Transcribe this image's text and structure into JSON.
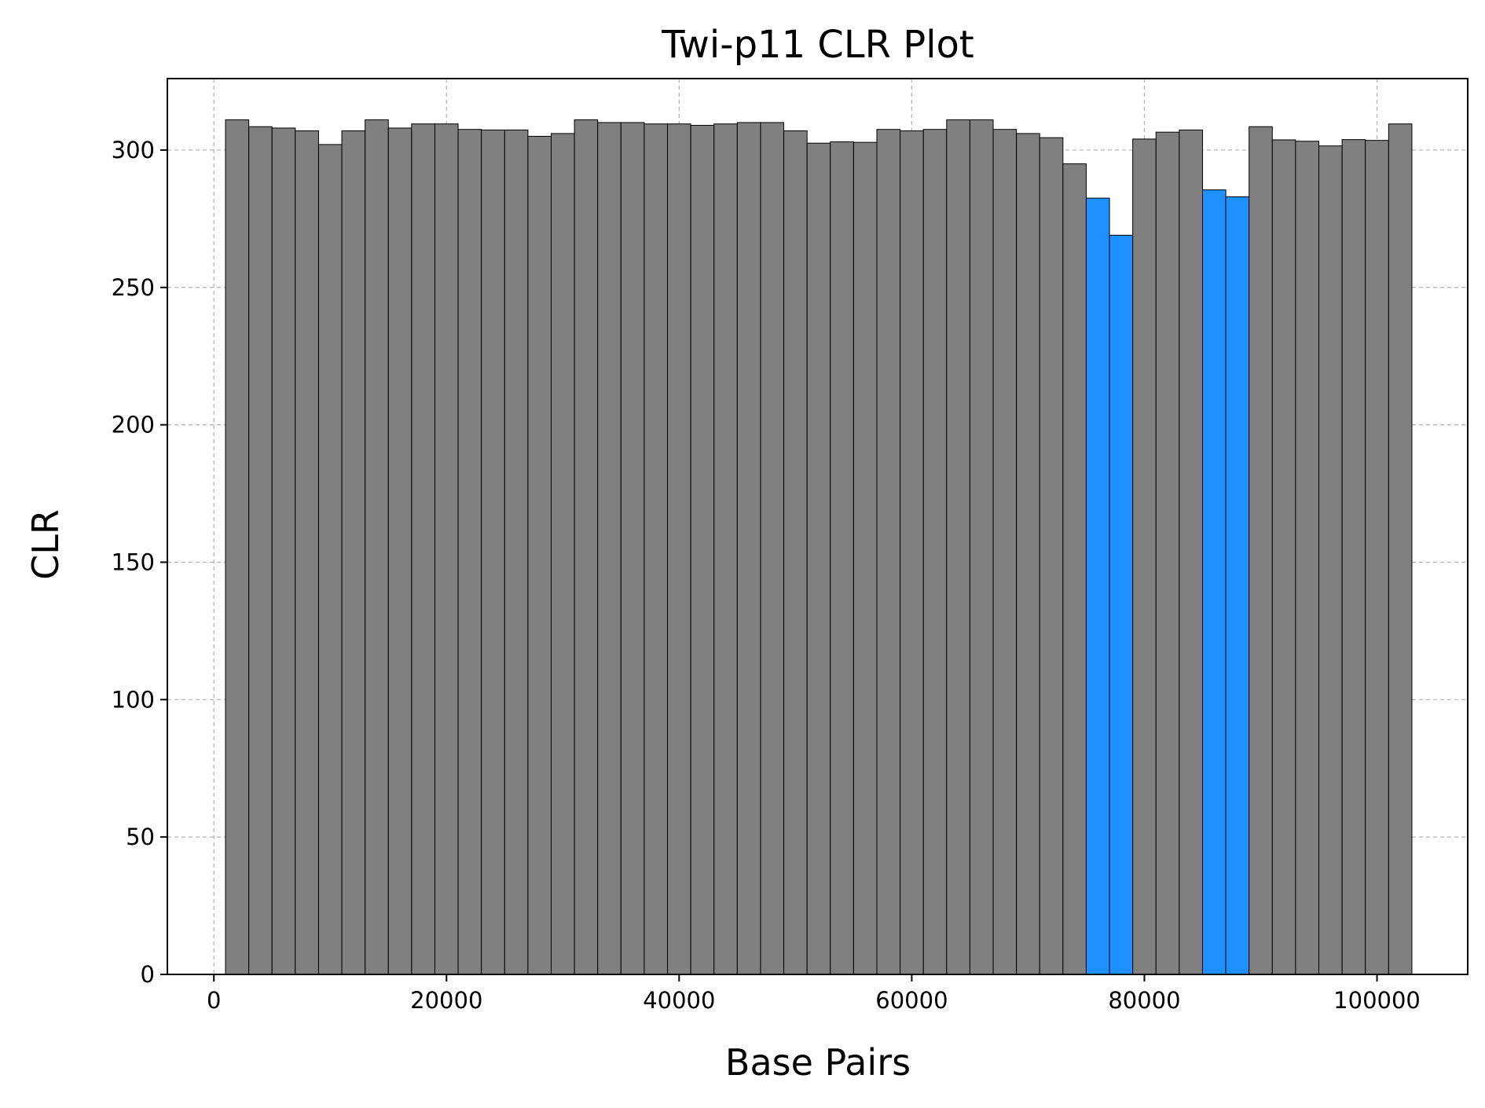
{
  "chart_data": {
    "type": "bar",
    "title": "Twi-p11 CLR Plot",
    "xlabel": "Base Pairs",
    "ylabel": "CLR",
    "xlim": [
      -4000,
      107800
    ],
    "ylim": [
      0,
      326
    ],
    "xticks": [
      0,
      20000,
      40000,
      60000,
      80000,
      100000
    ],
    "yticks": [
      0,
      50,
      100,
      150,
      200,
      250,
      300
    ],
    "grid": true,
    "bin_width": 2000,
    "colors": {
      "default": "#808080",
      "highlight": "#1e90ff"
    },
    "bars": [
      {
        "x": 2000,
        "value": 311,
        "highlight": false
      },
      {
        "x": 4000,
        "value": 308.5,
        "highlight": false
      },
      {
        "x": 6000,
        "value": 308,
        "highlight": false
      },
      {
        "x": 8000,
        "value": 307,
        "highlight": false
      },
      {
        "x": 10000,
        "value": 302,
        "highlight": false
      },
      {
        "x": 12000,
        "value": 307,
        "highlight": false
      },
      {
        "x": 14000,
        "value": 311,
        "highlight": false
      },
      {
        "x": 16000,
        "value": 308,
        "highlight": false
      },
      {
        "x": 18000,
        "value": 309.5,
        "highlight": false
      },
      {
        "x": 20000,
        "value": 309.5,
        "highlight": false
      },
      {
        "x": 22000,
        "value": 307.5,
        "highlight": false
      },
      {
        "x": 24000,
        "value": 307.3,
        "highlight": false
      },
      {
        "x": 26000,
        "value": 307.3,
        "highlight": false
      },
      {
        "x": 28000,
        "value": 305,
        "highlight": false
      },
      {
        "x": 30000,
        "value": 306,
        "highlight": false
      },
      {
        "x": 32000,
        "value": 311,
        "highlight": false
      },
      {
        "x": 34000,
        "value": 310,
        "highlight": false
      },
      {
        "x": 36000,
        "value": 310,
        "highlight": false
      },
      {
        "x": 38000,
        "value": 309.5,
        "highlight": false
      },
      {
        "x": 40000,
        "value": 309.5,
        "highlight": false
      },
      {
        "x": 42000,
        "value": 309,
        "highlight": false
      },
      {
        "x": 44000,
        "value": 309.5,
        "highlight": false
      },
      {
        "x": 46000,
        "value": 310,
        "highlight": false
      },
      {
        "x": 48000,
        "value": 310,
        "highlight": false
      },
      {
        "x": 50000,
        "value": 307,
        "highlight": false
      },
      {
        "x": 52000,
        "value": 302.5,
        "highlight": false
      },
      {
        "x": 54000,
        "value": 303,
        "highlight": false
      },
      {
        "x": 56000,
        "value": 302.8,
        "highlight": false
      },
      {
        "x": 58000,
        "value": 307.5,
        "highlight": false
      },
      {
        "x": 60000,
        "value": 307,
        "highlight": false
      },
      {
        "x": 62000,
        "value": 307.5,
        "highlight": false
      },
      {
        "x": 64000,
        "value": 311,
        "highlight": false
      },
      {
        "x": 66000,
        "value": 311,
        "highlight": false
      },
      {
        "x": 68000,
        "value": 307.5,
        "highlight": false
      },
      {
        "x": 70000,
        "value": 306,
        "highlight": false
      },
      {
        "x": 72000,
        "value": 304.5,
        "highlight": false
      },
      {
        "x": 74000,
        "value": 295,
        "highlight": false
      },
      {
        "x": 76000,
        "value": 282.5,
        "highlight": true
      },
      {
        "x": 78000,
        "value": 269,
        "highlight": true
      },
      {
        "x": 80000,
        "value": 304,
        "highlight": false
      },
      {
        "x": 82000,
        "value": 306.5,
        "highlight": false
      },
      {
        "x": 84000,
        "value": 307.3,
        "highlight": false
      },
      {
        "x": 86000,
        "value": 285.5,
        "highlight": true
      },
      {
        "x": 88000,
        "value": 283,
        "highlight": true
      },
      {
        "x": 90000,
        "value": 308.5,
        "highlight": false
      },
      {
        "x": 92000,
        "value": 303.7,
        "highlight": false
      },
      {
        "x": 94000,
        "value": 303.2,
        "highlight": false
      },
      {
        "x": 96000,
        "value": 301.5,
        "highlight": false
      },
      {
        "x": 98000,
        "value": 303.8,
        "highlight": false
      },
      {
        "x": 100000,
        "value": 303.5,
        "highlight": false
      },
      {
        "x": 102000,
        "value": 309.5,
        "highlight": false
      }
    ]
  }
}
